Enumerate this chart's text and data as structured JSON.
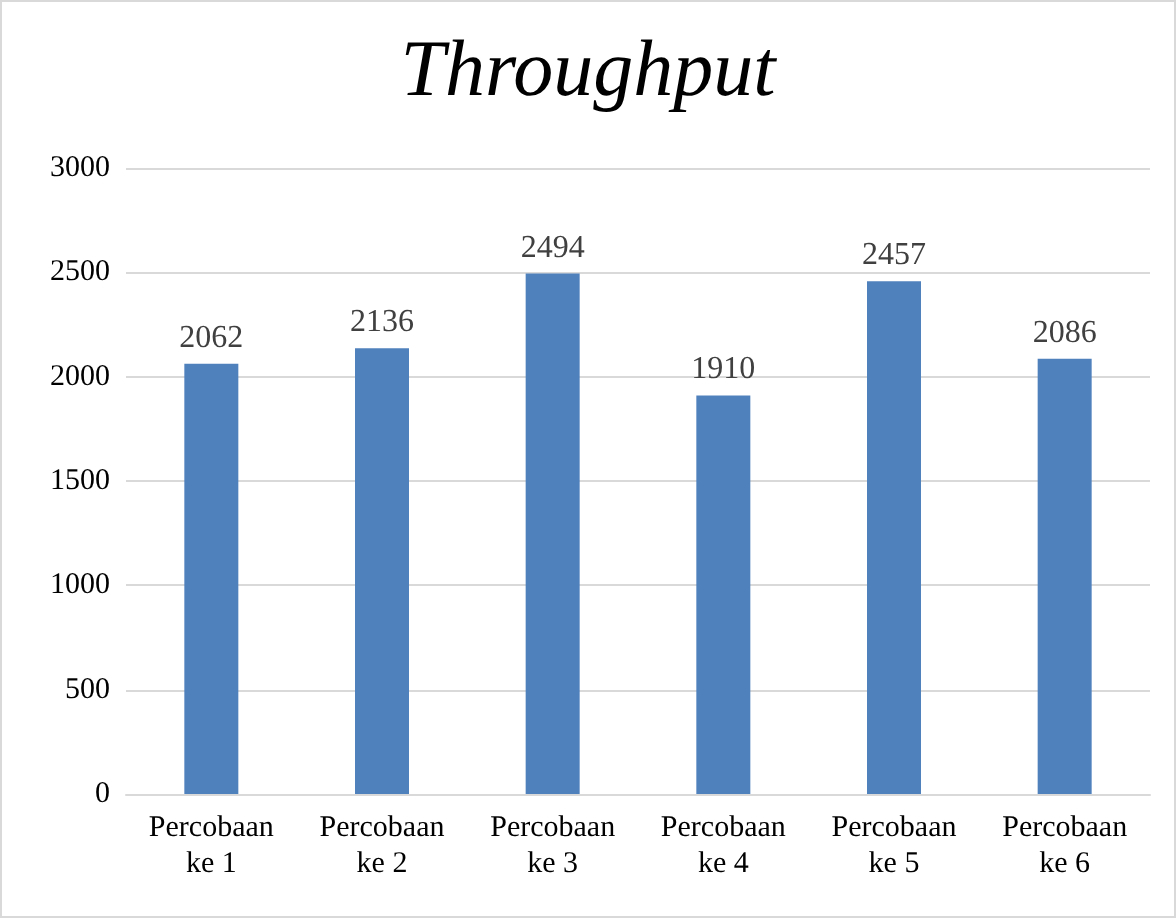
{
  "chart_data": {
    "type": "bar",
    "title": "Throughput",
    "categories": [
      "Percobaan ke 1",
      "Percobaan ke 2",
      "Percobaan ke 3",
      "Percobaan ke 4",
      "Percobaan ke 5",
      "Percobaan ke 6"
    ],
    "values": [
      2062,
      2136,
      2494,
      1910,
      2457,
      2086
    ],
    "color": "#4f81bd",
    "ylim": [
      0,
      3000
    ],
    "yticks": [
      0,
      500,
      1000,
      1500,
      2000,
      2500,
      3000
    ],
    "grid": "y",
    "data_labels": true
  }
}
